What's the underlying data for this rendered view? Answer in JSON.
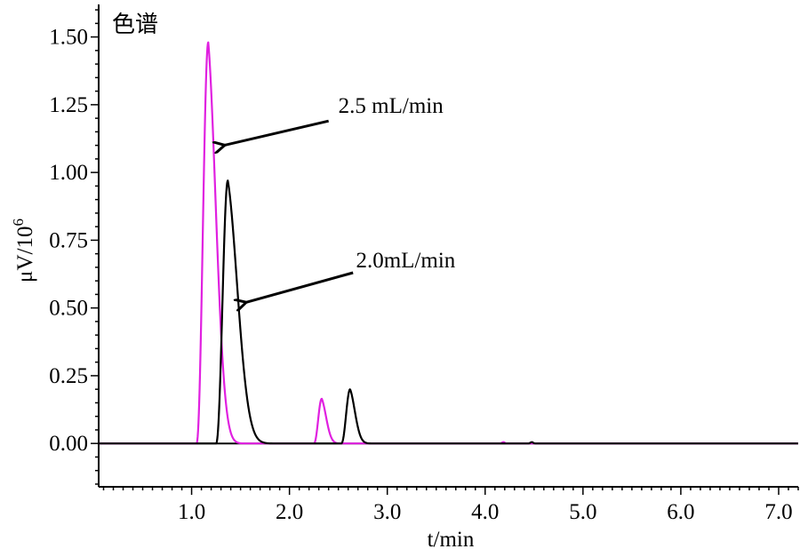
{
  "chart_data": {
    "type": "line",
    "title": "色谱",
    "xlabel": "t/min",
    "ylabel": "μV/10",
    "ylabel_sup": "6",
    "xlim": [
      0.05,
      7.2
    ],
    "ylim": [
      -0.16,
      1.62
    ],
    "x_ticks": [
      1.0,
      2.0,
      3.0,
      4.0,
      5.0,
      6.0,
      7.0
    ],
    "x_tick_labels": [
      "1.0",
      "2.0",
      "3.0",
      "4.0",
      "5.0",
      "6.0",
      "7.0"
    ],
    "y_ticks": [
      0.0,
      0.25,
      0.5,
      0.75,
      1.0,
      1.25,
      1.5
    ],
    "y_tick_labels": [
      "0.00",
      "0.25",
      "0.50",
      "0.75",
      "1.00",
      "1.25",
      "1.50"
    ],
    "zero_line": true,
    "grid": false,
    "legend": "none",
    "series": [
      {
        "color": "#e020e0",
        "peaks": [
          {
            "start": 1.05,
            "apex": 1.17,
            "height": 1.48,
            "end": 1.55
          },
          {
            "start": 2.25,
            "apex": 2.33,
            "height": 0.165,
            "end": 2.55
          },
          {
            "start": 4.15,
            "apex": 4.19,
            "height": 0.005,
            "end": 4.24
          }
        ]
      },
      {
        "color": "#000000",
        "peaks": [
          {
            "start": 1.25,
            "apex": 1.37,
            "height": 0.97,
            "end": 1.85
          },
          {
            "start": 2.53,
            "apex": 2.62,
            "height": 0.2,
            "end": 2.86
          },
          {
            "start": 4.44,
            "apex": 4.48,
            "height": 0.005,
            "end": 4.53
          }
        ]
      }
    ],
    "annotations": [
      {
        "text": "2.5 mL/min",
        "text_at": [
          2.5,
          1.22
        ],
        "arrow_from": [
          2.4,
          1.19
        ],
        "arrow_to": [
          1.33,
          1.1
        ]
      },
      {
        "text": "2.0mL/min",
        "text_at": [
          2.68,
          0.65
        ],
        "arrow_from": [
          2.65,
          0.63
        ],
        "arrow_to": [
          1.55,
          0.52
        ]
      }
    ]
  }
}
